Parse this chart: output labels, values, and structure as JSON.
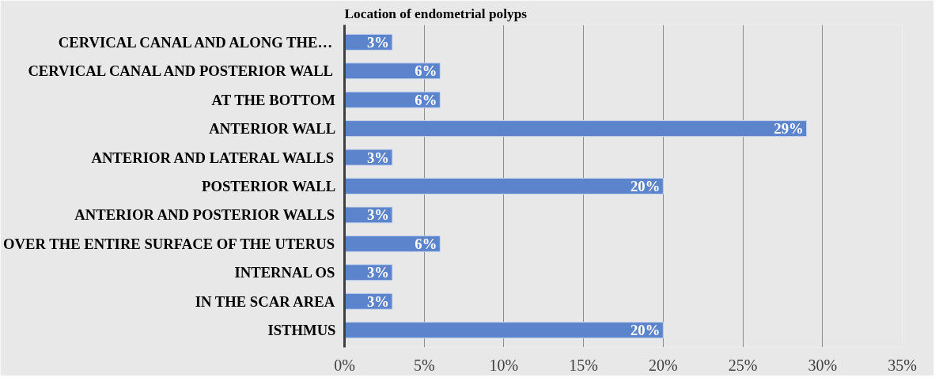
{
  "chart_data": {
    "type": "bar",
    "orientation": "horizontal",
    "title": "Location of endometrial polyps",
    "categories": [
      "CERVICAL CANAL AND ALONG THE…",
      "CERVICAL CANAL AND POSTERIOR WALL",
      "AT THE BOTTOM",
      "ANTERIOR WALL",
      "ANTERIOR AND LATERAL WALLS",
      "POSTERIOR WALL",
      "ANTERIOR AND POSTERIOR WALLS",
      "OVER THE ENTIRE SURFACE OF THE UTERUS",
      "INTERNAL OS",
      "IN THE SCAR AREA",
      "ISTHMUS"
    ],
    "values": [
      3,
      6,
      6,
      29,
      3,
      20,
      3,
      6,
      3,
      3,
      20
    ],
    "value_labels": [
      "3%",
      "6%",
      "6%",
      "29%",
      "3%",
      "20%",
      "3%",
      "6%",
      "3%",
      "3%",
      "20%"
    ],
    "color": "#5b84cc",
    "xlim": [
      0,
      35
    ],
    "xticks": [
      {
        "value": 0,
        "label": "0%"
      },
      {
        "value": 5,
        "label": "5%"
      },
      {
        "value": 10,
        "label": "10%"
      },
      {
        "value": 15,
        "label": "15%"
      },
      {
        "value": 20,
        "label": "20%"
      },
      {
        "value": 25,
        "label": "25%"
      },
      {
        "value": 30,
        "label": "30%"
      },
      {
        "value": 35,
        "label": "35%"
      }
    ],
    "grid": "x"
  }
}
